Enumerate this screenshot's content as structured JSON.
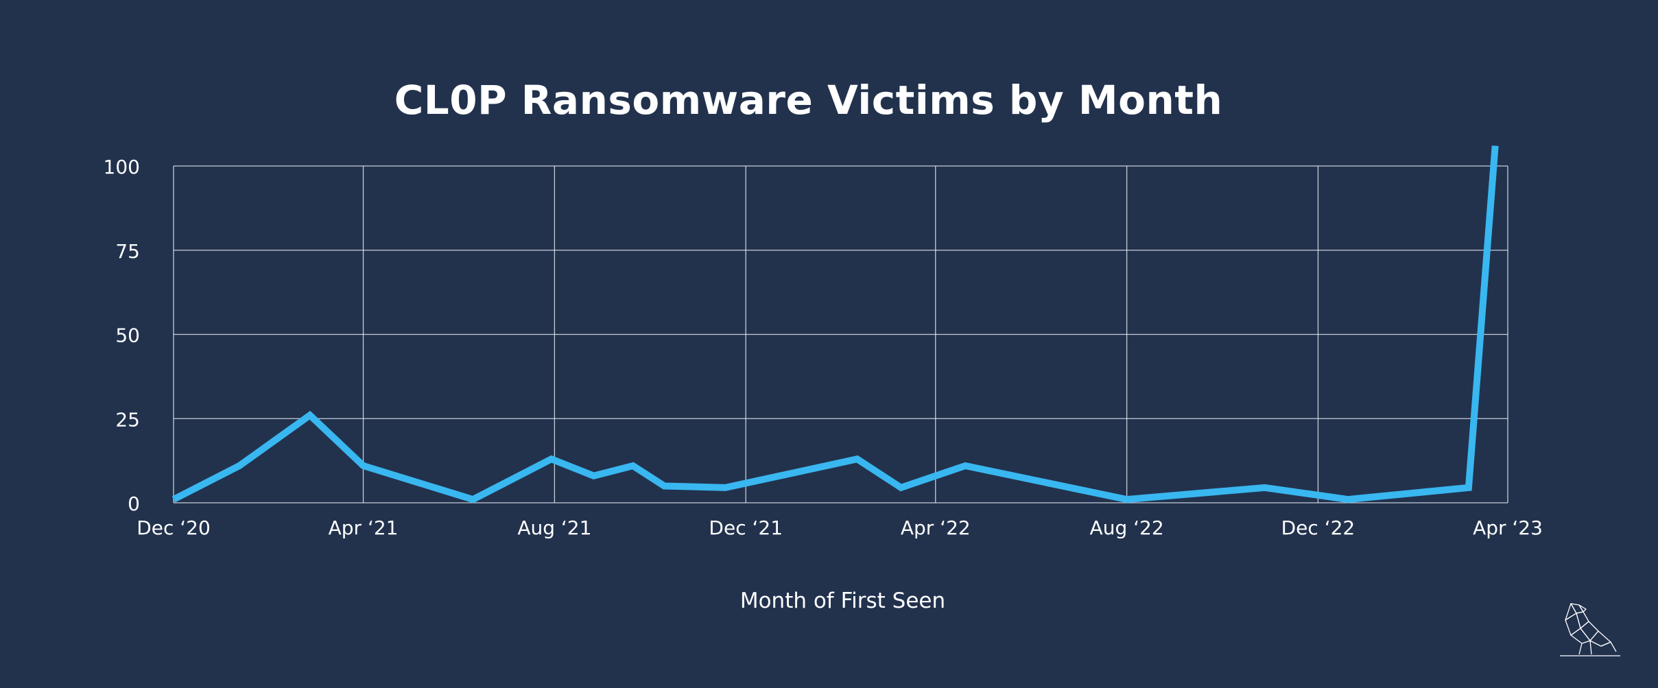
{
  "chart_data": {
    "type": "line",
    "title": "CL0P Ransomware Victims by Month",
    "xlabel": "Month of First Seen",
    "ylabel": "",
    "ylim": [
      0,
      100
    ],
    "yticks": [
      0,
      25,
      50,
      75,
      100
    ],
    "xlim": [
      "2020-12",
      "2023-04"
    ],
    "xticks": [
      {
        "date": "2020-12",
        "label": "Dec ‘20"
      },
      {
        "date": "2021-04",
        "label": "Apr ‘21"
      },
      {
        "date": "2021-08",
        "label": "Aug ‘21"
      },
      {
        "date": "2021-12",
        "label": "Dec ‘21"
      },
      {
        "date": "2022-04",
        "label": "Apr ‘22"
      },
      {
        "date": "2022-08",
        "label": "Aug ‘22"
      },
      {
        "date": "2022-12",
        "label": "Dec ‘22"
      },
      {
        "date": "2023-04",
        "label": "Apr ‘23"
      }
    ],
    "grid": true,
    "legend": "none",
    "series": [
      {
        "color": "#39b7f0",
        "points": [
          {
            "x": "2020-12-01",
            "y": 1
          },
          {
            "x": "2021-01-12",
            "y": 11
          },
          {
            "x": "2021-02-26",
            "y": 26
          },
          {
            "x": "2021-04-01",
            "y": 11
          },
          {
            "x": "2021-06-10",
            "y": 1
          },
          {
            "x": "2021-07-30",
            "y": 13
          },
          {
            "x": "2021-08-26",
            "y": 8
          },
          {
            "x": "2021-09-20",
            "y": 11
          },
          {
            "x": "2021-10-10",
            "y": 5
          },
          {
            "x": "2021-11-18",
            "y": 4.5
          },
          {
            "x": "2022-02-10",
            "y": 13
          },
          {
            "x": "2022-03-10",
            "y": 4.5
          },
          {
            "x": "2022-04-20",
            "y": 11
          },
          {
            "x": "2022-08-01",
            "y": 1
          },
          {
            "x": "2022-10-28",
            "y": 4.5
          },
          {
            "x": "2022-12-20",
            "y": 1
          },
          {
            "x": "2023-03-07",
            "y": 4.5
          },
          {
            "x": "2023-03-24",
            "y": 106
          }
        ]
      }
    ]
  }
}
